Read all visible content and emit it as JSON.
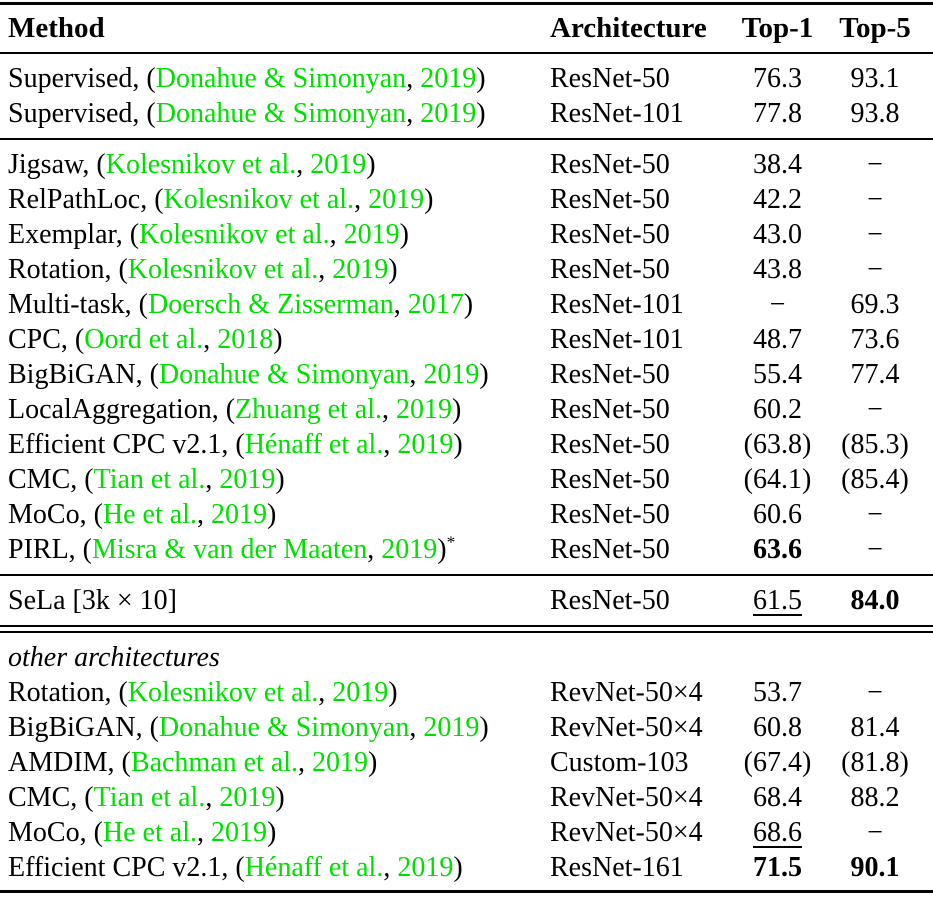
{
  "colors": {
    "citation_green": "#00e000",
    "text": "#000000",
    "rule": "#000000",
    "background": "#ffffff"
  },
  "header": {
    "method": "Method",
    "architecture": "Architecture",
    "top1": "Top-1",
    "top5": "Top-5"
  },
  "sections": [
    {
      "name": "supervised",
      "rows": [
        {
          "method": [
            {
              "t": "Supervised, (",
              "cite": false
            },
            {
              "t": "Donahue & Simonyan",
              "cite": true
            },
            {
              "t": ", ",
              "cite": false
            },
            {
              "t": "2019",
              "cite": true
            },
            {
              "t": ")",
              "cite": false
            }
          ],
          "arch": "ResNet-50",
          "top1": {
            "v": "76.3"
          },
          "top5": {
            "v": "93.1"
          }
        },
        {
          "method": [
            {
              "t": "Supervised, (",
              "cite": false
            },
            {
              "t": "Donahue & Simonyan",
              "cite": true
            },
            {
              "t": ", ",
              "cite": false
            },
            {
              "t": "2019",
              "cite": true
            },
            {
              "t": ")",
              "cite": false
            }
          ],
          "arch": "ResNet-101",
          "top1": {
            "v": "77.8"
          },
          "top5": {
            "v": "93.8"
          }
        }
      ]
    },
    {
      "name": "self-supervised",
      "rows": [
        {
          "method": [
            {
              "t": "Jigsaw, (",
              "cite": false
            },
            {
              "t": "Kolesnikov et al.",
              "cite": true
            },
            {
              "t": ", ",
              "cite": false
            },
            {
              "t": "2019",
              "cite": true
            },
            {
              "t": ")",
              "cite": false
            }
          ],
          "arch": "ResNet-50",
          "top1": {
            "v": "38.4"
          },
          "top5": {
            "v": "−"
          }
        },
        {
          "method": [
            {
              "t": "RelPathLoc, (",
              "cite": false
            },
            {
              "t": "Kolesnikov et al.",
              "cite": true
            },
            {
              "t": ", ",
              "cite": false
            },
            {
              "t": "2019",
              "cite": true
            },
            {
              "t": ")",
              "cite": false
            }
          ],
          "arch": "ResNet-50",
          "top1": {
            "v": "42.2"
          },
          "top5": {
            "v": "−"
          }
        },
        {
          "method": [
            {
              "t": "Exemplar, (",
              "cite": false
            },
            {
              "t": "Kolesnikov et al.",
              "cite": true
            },
            {
              "t": ", ",
              "cite": false
            },
            {
              "t": "2019",
              "cite": true
            },
            {
              "t": ")",
              "cite": false
            }
          ],
          "arch": "ResNet-50",
          "top1": {
            "v": "43.0"
          },
          "top5": {
            "v": "−"
          }
        },
        {
          "method": [
            {
              "t": "Rotation, (",
              "cite": false
            },
            {
              "t": "Kolesnikov et al.",
              "cite": true
            },
            {
              "t": ", ",
              "cite": false
            },
            {
              "t": "2019",
              "cite": true
            },
            {
              "t": ")",
              "cite": false
            }
          ],
          "arch": "ResNet-50",
          "top1": {
            "v": "43.8"
          },
          "top5": {
            "v": "−"
          }
        },
        {
          "method": [
            {
              "t": "Multi-task, (",
              "cite": false
            },
            {
              "t": "Doersch & Zisserman",
              "cite": true
            },
            {
              "t": ", ",
              "cite": false
            },
            {
              "t": "2017",
              "cite": true
            },
            {
              "t": ")",
              "cite": false
            }
          ],
          "arch": "ResNet-101",
          "top1": {
            "v": "−"
          },
          "top5": {
            "v": "69.3"
          }
        },
        {
          "method": [
            {
              "t": "CPC, (",
              "cite": false
            },
            {
              "t": "Oord et al.",
              "cite": true
            },
            {
              "t": ", ",
              "cite": false
            },
            {
              "t": "2018",
              "cite": true
            },
            {
              "t": ")",
              "cite": false
            }
          ],
          "arch": "ResNet-101",
          "top1": {
            "v": "48.7"
          },
          "top5": {
            "v": "73.6"
          }
        },
        {
          "method": [
            {
              "t": "BigBiGAN, (",
              "cite": false
            },
            {
              "t": "Donahue & Simonyan",
              "cite": true
            },
            {
              "t": ", ",
              "cite": false
            },
            {
              "t": "2019",
              "cite": true
            },
            {
              "t": ")",
              "cite": false
            }
          ],
          "arch": "ResNet-50",
          "top1": {
            "v": "55.4"
          },
          "top5": {
            "v": "77.4"
          }
        },
        {
          "method": [
            {
              "t": "LocalAggregation, (",
              "cite": false
            },
            {
              "t": "Zhuang et al.",
              "cite": true
            },
            {
              "t": ", ",
              "cite": false
            },
            {
              "t": "2019",
              "cite": true
            },
            {
              "t": ")",
              "cite": false
            }
          ],
          "arch": "ResNet-50",
          "top1": {
            "v": "60.2"
          },
          "top5": {
            "v": "−"
          }
        },
        {
          "method": [
            {
              "t": "Efficient CPC v2.1, (",
              "cite": false
            },
            {
              "t": "Hénaff et al.",
              "cite": true
            },
            {
              "t": ", ",
              "cite": false
            },
            {
              "t": "2019",
              "cite": true
            },
            {
              "t": ")",
              "cite": false
            }
          ],
          "arch": "ResNet-50",
          "top1": {
            "v": "(63.8)"
          },
          "top5": {
            "v": "(85.3)"
          }
        },
        {
          "method": [
            {
              "t": "CMC, (",
              "cite": false
            },
            {
              "t": "Tian et al.",
              "cite": true
            },
            {
              "t": ", ",
              "cite": false
            },
            {
              "t": "2019",
              "cite": true
            },
            {
              "t": ")",
              "cite": false
            }
          ],
          "arch": "ResNet-50",
          "top1": {
            "v": "(64.1)"
          },
          "top5": {
            "v": "(85.4)"
          }
        },
        {
          "method": [
            {
              "t": "MoCo, (",
              "cite": false
            },
            {
              "t": "He et al.",
              "cite": true
            },
            {
              "t": ", ",
              "cite": false
            },
            {
              "t": "2019",
              "cite": true
            },
            {
              "t": ")",
              "cite": false
            }
          ],
          "arch": "ResNet-50",
          "top1": {
            "v": "60.6"
          },
          "top5": {
            "v": "−"
          }
        },
        {
          "method": [
            {
              "t": "PIRL, (",
              "cite": false
            },
            {
              "t": "Misra & van der Maaten",
              "cite": true
            },
            {
              "t": ", ",
              "cite": false
            },
            {
              "t": "2019",
              "cite": true
            },
            {
              "t": ")",
              "cite": false
            }
          ],
          "sup": "*",
          "arch": "ResNet-50",
          "top1": {
            "v": "63.6",
            "bold": true
          },
          "top5": {
            "v": "−"
          }
        }
      ]
    },
    {
      "name": "sela",
      "rows": [
        {
          "method": [
            {
              "t": "SeLa [3k × 10]",
              "cite": false
            }
          ],
          "arch": "ResNet-50",
          "top1": {
            "v": "61.5",
            "underline": true
          },
          "top5": {
            "v": "84.0",
            "bold": true
          }
        }
      ]
    },
    {
      "name": "other-architectures",
      "label": "other architectures",
      "rows": [
        {
          "method": [
            {
              "t": "Rotation, (",
              "cite": false
            },
            {
              "t": "Kolesnikov et al.",
              "cite": true
            },
            {
              "t": ", ",
              "cite": false
            },
            {
              "t": "2019",
              "cite": true
            },
            {
              "t": ")",
              "cite": false
            }
          ],
          "arch": "RevNet-50×4",
          "top1": {
            "v": "53.7"
          },
          "top5": {
            "v": "−"
          }
        },
        {
          "method": [
            {
              "t": "BigBiGAN, (",
              "cite": false
            },
            {
              "t": "Donahue & Simonyan",
              "cite": true
            },
            {
              "t": ", ",
              "cite": false
            },
            {
              "t": "2019",
              "cite": true
            },
            {
              "t": ")",
              "cite": false
            }
          ],
          "arch": "RevNet-50×4",
          "top1": {
            "v": "60.8"
          },
          "top5": {
            "v": "81.4"
          }
        },
        {
          "method": [
            {
              "t": "AMDIM, (",
              "cite": false
            },
            {
              "t": "Bachman et al.",
              "cite": true
            },
            {
              "t": ", ",
              "cite": false
            },
            {
              "t": "2019",
              "cite": true
            },
            {
              "t": ")",
              "cite": false
            }
          ],
          "arch": "Custom-103",
          "top1": {
            "v": "(67.4)"
          },
          "top5": {
            "v": "(81.8)"
          }
        },
        {
          "method": [
            {
              "t": "CMC, (",
              "cite": false
            },
            {
              "t": "Tian et al.",
              "cite": true
            },
            {
              "t": ", ",
              "cite": false
            },
            {
              "t": "2019",
              "cite": true
            },
            {
              "t": ")",
              "cite": false
            }
          ],
          "arch": "RevNet-50×4",
          "top1": {
            "v": "68.4"
          },
          "top5": {
            "v": "88.2"
          }
        },
        {
          "method": [
            {
              "t": "MoCo, (",
              "cite": false
            },
            {
              "t": "He et al.",
              "cite": true
            },
            {
              "t": ", ",
              "cite": false
            },
            {
              "t": "2019",
              "cite": true
            },
            {
              "t": ")",
              "cite": false
            }
          ],
          "arch": "RevNet-50×4",
          "top1": {
            "v": "68.6",
            "underline": true
          },
          "top5": {
            "v": "−"
          }
        },
        {
          "method": [
            {
              "t": "Efficient CPC v2.1, (",
              "cite": false
            },
            {
              "t": "Hénaff et al.",
              "cite": true
            },
            {
              "t": ", ",
              "cite": false
            },
            {
              "t": "2019",
              "cite": true
            },
            {
              "t": ")",
              "cite": false
            }
          ],
          "arch": "ResNet-161",
          "top1": {
            "v": "71.5",
            "bold": true
          },
          "top5": {
            "v": "90.1",
            "bold": true
          }
        }
      ]
    }
  ]
}
